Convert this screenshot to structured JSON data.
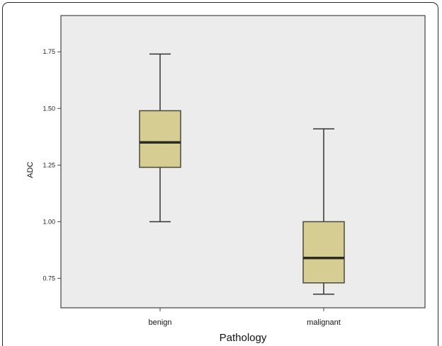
{
  "chart_data": {
    "type": "box",
    "xlabel": "Pathology",
    "ylabel": "ADC",
    "ylim": [
      0.62,
      1.91
    ],
    "y_ticks": [
      {
        "value": 0.75,
        "label": "0.75"
      },
      {
        "value": 1.0,
        "label": "1.00"
      },
      {
        "value": 1.25,
        "label": "1.25"
      },
      {
        "value": 1.5,
        "label": "1.50"
      },
      {
        "value": 1.75,
        "label": "1.75"
      }
    ],
    "categories": [
      "benign",
      "malignant"
    ],
    "boxes": [
      {
        "category": "benign",
        "min": 1.0,
        "q1": 1.24,
        "median": 1.35,
        "q3": 1.49,
        "max": 1.74
      },
      {
        "category": "malignant",
        "min": 0.68,
        "q1": 0.73,
        "median": 0.84,
        "q3": 1.0,
        "max": 1.41
      }
    ],
    "box_color": "#d6cd93",
    "plot_background": "#ececec"
  }
}
